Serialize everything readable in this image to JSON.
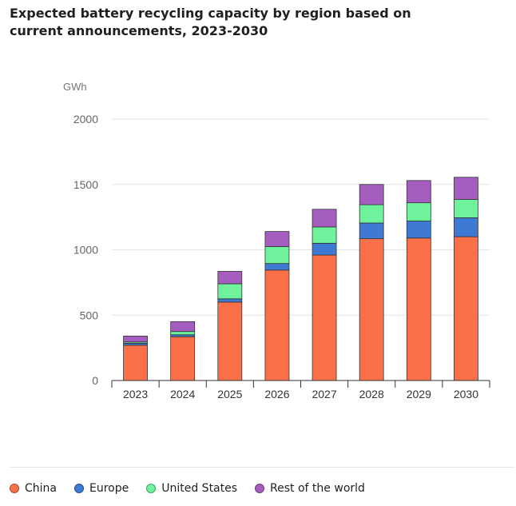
{
  "title": "Expected battery recycling capacity by region based on current announcements, 2023-2030",
  "chart_data": {
    "type": "bar",
    "stacked": true,
    "title": "Expected battery recycling capacity by region based on current announcements, 2023-2030",
    "ylabel": "GWh",
    "xlabel": "",
    "ylim": [
      0,
      2000
    ],
    "yticks": [
      0,
      500,
      1000,
      1500,
      2000
    ],
    "grid": true,
    "legend_position": "bottom",
    "categories": [
      "2023",
      "2024",
      "2025",
      "2026",
      "2027",
      "2028",
      "2029",
      "2030"
    ],
    "series": [
      {
        "name": "China",
        "color": "#fa7149",
        "values": [
          270,
          335,
          600,
          845,
          960,
          1085,
          1090,
          1100
        ]
      },
      {
        "name": "Europe",
        "color": "#3e7ad3",
        "values": [
          15,
          15,
          25,
          50,
          90,
          120,
          130,
          145
        ]
      },
      {
        "name": "United States",
        "color": "#6ef29b",
        "values": [
          10,
          25,
          115,
          130,
          125,
          140,
          140,
          140
        ]
      },
      {
        "name": "Rest of the world",
        "color": "#a55ec0",
        "values": [
          45,
          75,
          95,
          115,
          135,
          155,
          170,
          170
        ]
      }
    ]
  }
}
